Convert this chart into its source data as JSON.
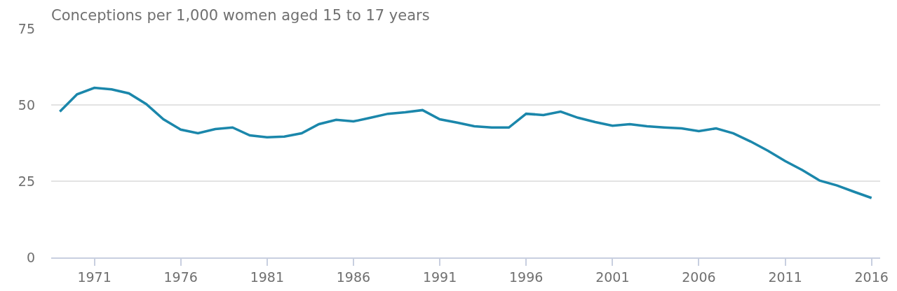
{
  "chart_data": {
    "type": "line",
    "title": "Conceptions per 1,000 women aged 15 to 17 years",
    "x": [
      1969,
      1970,
      1971,
      1972,
      1973,
      1974,
      1975,
      1976,
      1977,
      1978,
      1979,
      1980,
      1981,
      1982,
      1983,
      1984,
      1985,
      1986,
      1987,
      1988,
      1989,
      1990,
      1991,
      1992,
      1993,
      1994,
      1995,
      1996,
      1997,
      1998,
      1999,
      2000,
      2001,
      2002,
      2003,
      2004,
      2005,
      2006,
      2007,
      2008,
      2009,
      2010,
      2011,
      2012,
      2013,
      2014,
      2015,
      2016
    ],
    "series": [
      {
        "color": "#1b87ab",
        "values": [
          47.8,
          53.5,
          55.6,
          55.1,
          53.8,
          50.3,
          45.3,
          41.9,
          40.7,
          42.1,
          42.6,
          40.0,
          39.4,
          39.6,
          40.7,
          43.7,
          45.1,
          44.6,
          45.8,
          47.1,
          47.6,
          48.3,
          45.3,
          44.2,
          43.0,
          42.6,
          42.6,
          47.1,
          46.7,
          47.8,
          45.8,
          44.4,
          43.2,
          43.7,
          43.0,
          42.6,
          42.3,
          41.4,
          42.3,
          40.7,
          38.0,
          35.0,
          31.6,
          28.6,
          25.2,
          23.6,
          21.5,
          19.5
        ]
      }
    ],
    "xlim": [
      1968.5,
      2016.5
    ],
    "xticks": [
      1971,
      1976,
      1981,
      1986,
      1991,
      1996,
      2001,
      2006,
      2011,
      2016
    ],
    "ylim": [
      0,
      75
    ],
    "yticks": [
      0,
      25,
      50,
      75
    ],
    "grid": "y",
    "marker": "none",
    "line_style": "solid"
  }
}
